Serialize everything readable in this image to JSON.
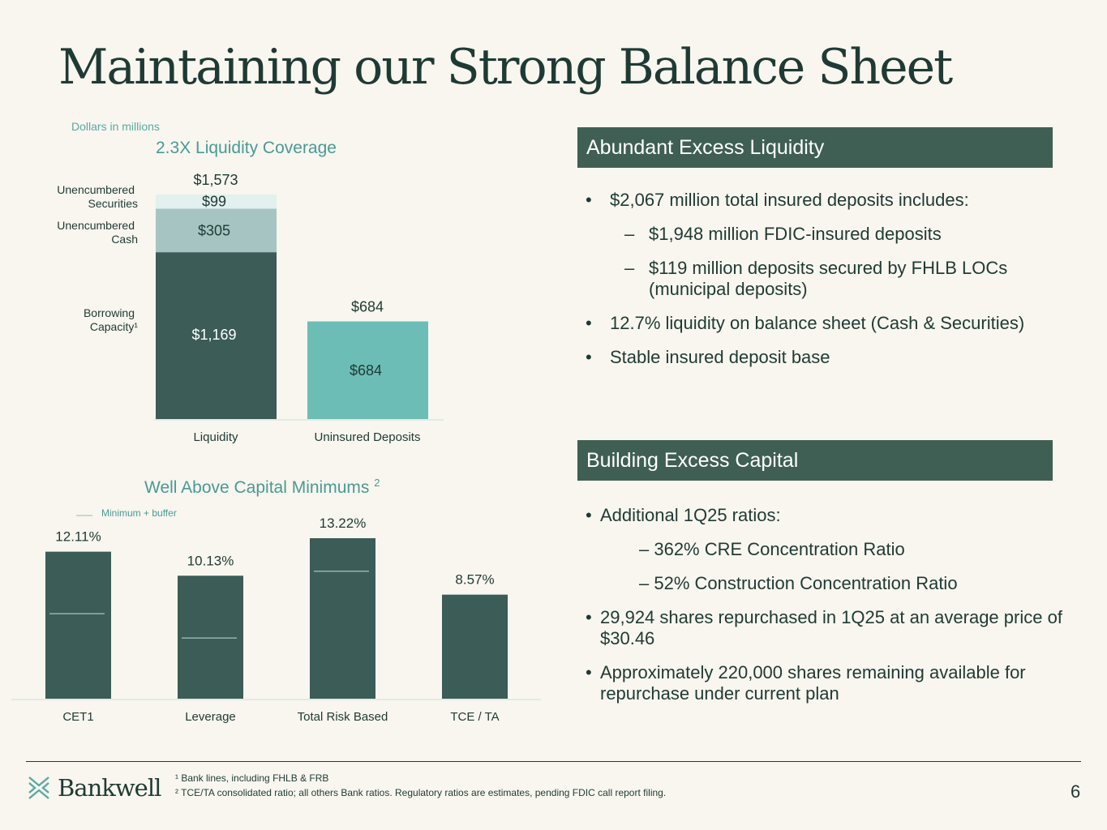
{
  "page": {
    "title": "Maintaining our Strong Balance Sheet",
    "units_note": "Dollars in millions",
    "page_number": "6",
    "logo_text": "Bankwell"
  },
  "footnotes": [
    "¹ Bank lines, including FHLB & FRB",
    "² TCE/TA consolidated ratio; all others Bank ratios. Regulatory ratios are estimates, pending FDIC call report filing."
  ],
  "panels": {
    "liquidity": {
      "title": "Abundant Excess Liquidity",
      "bullets": [
        {
          "level": 1,
          "text": "$2,067 million total insured deposits includes:"
        },
        {
          "level": 2,
          "text": "$1,948 million FDIC-insured deposits"
        },
        {
          "level": 2,
          "text": "$119 million deposits secured by FHLB LOCs (municipal deposits)"
        },
        {
          "level": 1,
          "text": "12.7% liquidity on balance sheet (Cash & Securities)"
        },
        {
          "level": 1,
          "text": "Stable insured deposit base"
        }
      ]
    },
    "capital": {
      "title": "Building Excess Capital",
      "bullets": [
        {
          "level": 1,
          "text": "Additional 1Q25 ratios:"
        },
        {
          "level": 2,
          "text": "– 362% CRE Concentration Ratio"
        },
        {
          "level": 2,
          "text": "– 52% Construction Concentration Ratio"
        },
        {
          "level": 1,
          "text": "29,924 shares repurchased in 1Q25 at an average price of $30.46"
        },
        {
          "level": 1,
          "text": "Approximately 220,000 shares remaining available for repurchase under current plan"
        }
      ]
    }
  },
  "chart_data": [
    {
      "type": "bar",
      "title": "2.3X Liquidity Coverage",
      "categories": [
        "Liquidity",
        "Uninsured Deposits"
      ],
      "stacked": true,
      "series": [
        {
          "name": "Borrowing Capacity¹",
          "values": [
            1169,
            null
          ],
          "labels": [
            "$1,169",
            ""
          ],
          "color": "#3b5c57"
        },
        {
          "name": "Unencumbered Cash",
          "values": [
            305,
            null
          ],
          "labels": [
            "$305",
            ""
          ],
          "color": "#a6c5c2"
        },
        {
          "name": "Unencumbered Securities",
          "values": [
            99,
            null
          ],
          "labels": [
            "$99",
            ""
          ],
          "color": "#e2f0ee"
        },
        {
          "name": "",
          "values": [
            null,
            684
          ],
          "labels": [
            "",
            "$684"
          ],
          "color": "#6dbdb7"
        }
      ],
      "totals": [
        1573,
        684
      ],
      "total_labels": [
        "$1,573",
        "$684"
      ],
      "series_labels": [
        "Unencumbered Securities",
        "Unencumbered Cash",
        "Borrowing Capacity¹"
      ],
      "ylim": [
        0,
        1573
      ]
    },
    {
      "type": "bar",
      "title": "Well Above Capital Minimums",
      "title_note": "2",
      "legend": "Minimum + buffer",
      "categories": [
        "CET1",
        "Leverage",
        "Total Risk Based",
        "TCE / TA"
      ],
      "values": [
        12.11,
        10.13,
        13.22,
        8.57
      ],
      "value_labels": [
        "12.11%",
        "10.13%",
        "13.22%",
        "8.57%"
      ],
      "minimum_plus_buffer": [
        7.0,
        5.0,
        10.5,
        null
      ],
      "ylim": [
        0,
        13.22
      ],
      "color": "#3b5c57"
    }
  ],
  "colors": {
    "dark_green": "#1f3a34",
    "bar_dark": "#3b5c57",
    "teal": "#6dbdb7",
    "panel_header": "#3f5f54",
    "accent_text": "#4a9a94",
    "background": "#f8f6ef"
  }
}
